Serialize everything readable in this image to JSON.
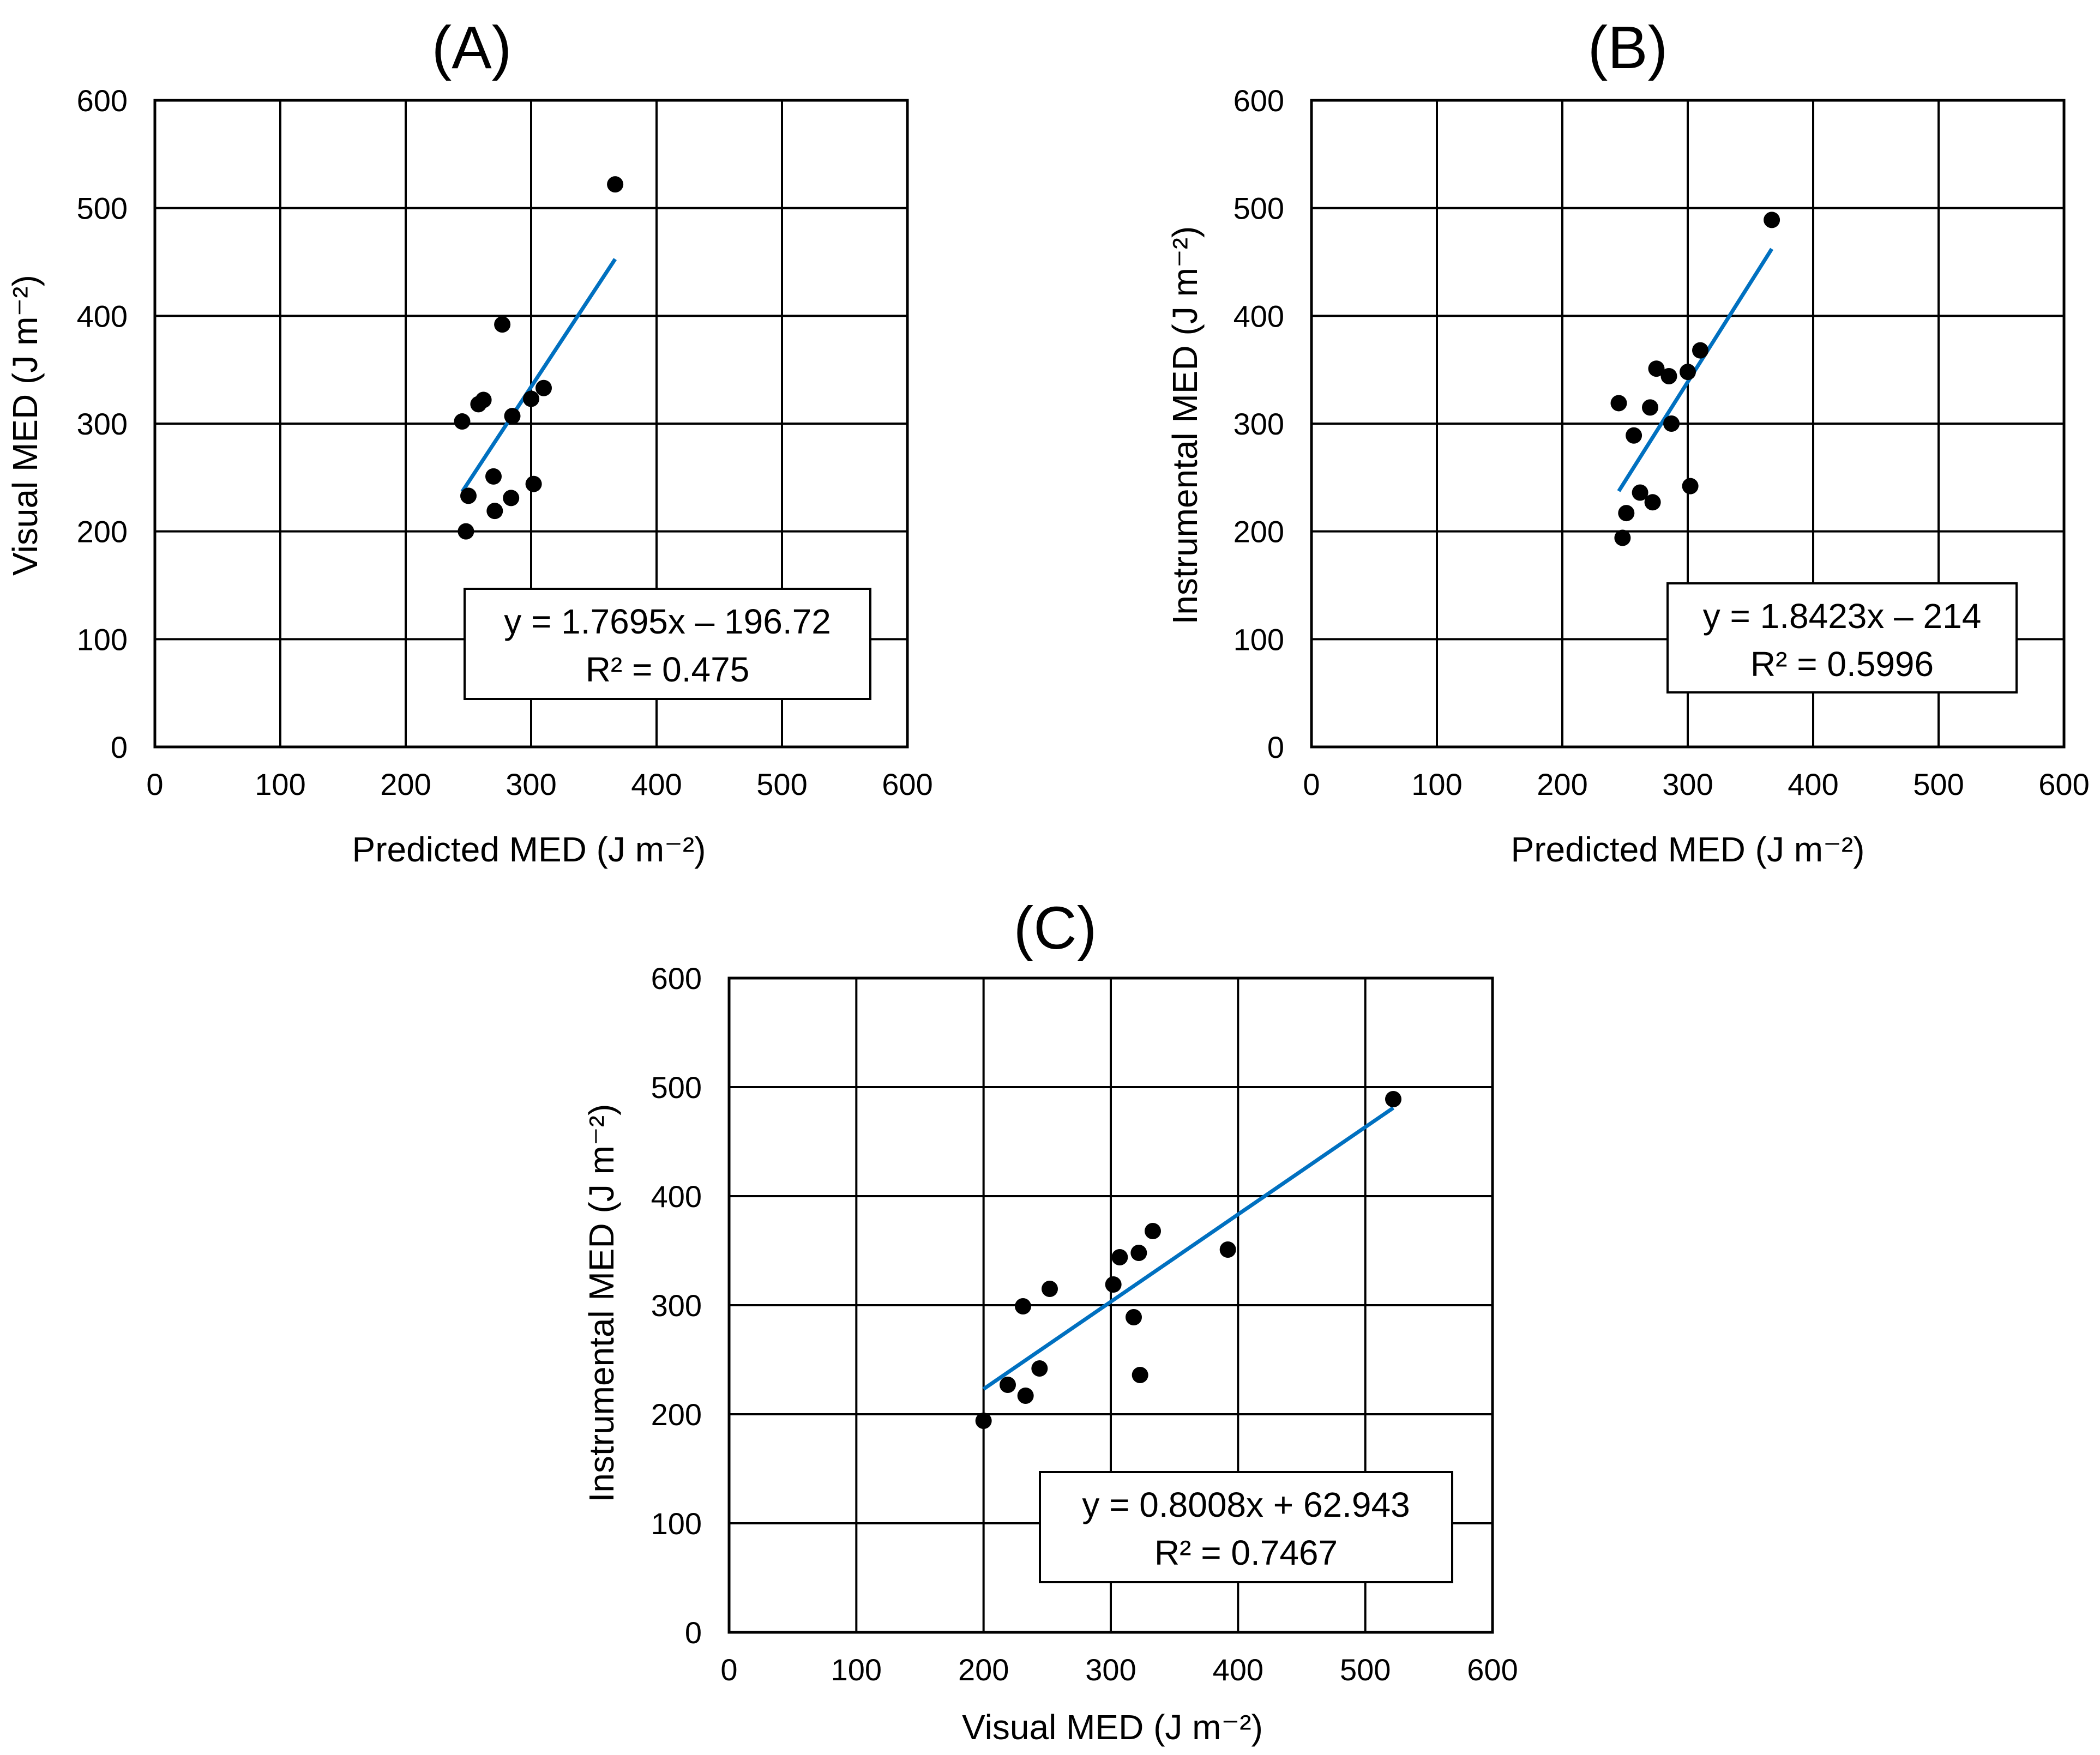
{
  "colors": {
    "trendline": "#0070c0",
    "points": "#000000",
    "grid": "#000000"
  },
  "chart_data": [
    {
      "type": "scatter",
      "panel_label": "(A)",
      "xlabel": "Predicted MED (J m⁻²)",
      "ylabel": "Visual MED (J m⁻²)",
      "xlim": [
        0,
        600
      ],
      "ylim": [
        0,
        600
      ],
      "xticks": [
        "0",
        "100",
        "200",
        "300",
        "400",
        "500",
        "600"
      ],
      "yticks": [
        "0",
        "100",
        "200",
        "300",
        "400",
        "500",
        "600"
      ],
      "grid": true,
      "points": [
        [
          245,
          302
        ],
        [
          248,
          200
        ],
        [
          250,
          233
        ],
        [
          258,
          318
        ],
        [
          262,
          322
        ],
        [
          270,
          251
        ],
        [
          271,
          219
        ],
        [
          277,
          392
        ],
        [
          284,
          231
        ],
        [
          285,
          307
        ],
        [
          300,
          323
        ],
        [
          302,
          244
        ],
        [
          310,
          333
        ],
        [
          367,
          522
        ]
      ],
      "trendline": {
        "slope": 1.7695,
        "intercept": -196.72,
        "x_range": [
          245,
          367
        ]
      },
      "equation": "y = 1.7695x – 196.72",
      "r_squared": "R² = 0.475"
    },
    {
      "type": "scatter",
      "panel_label": "(B)",
      "xlabel": "Predicted MED (J m⁻²)",
      "ylabel": "Instrumental MED (J m⁻²)",
      "xlim": [
        0,
        600
      ],
      "ylim": [
        0,
        600
      ],
      "xticks": [
        "0",
        "100",
        "200",
        "300",
        "400",
        "500",
        "600"
      ],
      "yticks": [
        "0",
        "100",
        "200",
        "300",
        "400",
        "500",
        "600"
      ],
      "grid": true,
      "points": [
        [
          245,
          319
        ],
        [
          248,
          194
        ],
        [
          251,
          217
        ],
        [
          257,
          289
        ],
        [
          262,
          236
        ],
        [
          270,
          315
        ],
        [
          272,
          227
        ],
        [
          275,
          351
        ],
        [
          285,
          344
        ],
        [
          287,
          300
        ],
        [
          300,
          348
        ],
        [
          302,
          242
        ],
        [
          310,
          368
        ],
        [
          367,
          489
        ]
      ],
      "trendline": {
        "slope": 1.8423,
        "intercept": -214,
        "x_range": [
          245,
          367
        ]
      },
      "equation": "y = 1.8423x – 214",
      "r_squared": "R² = 0.5996"
    },
    {
      "type": "scatter",
      "panel_label": "(C)",
      "xlabel": "Visual MED (J m⁻²)",
      "ylabel": "Instrumental MED (J m⁻²)",
      "xlim": [
        0,
        600
      ],
      "ylim": [
        0,
        600
      ],
      "xticks": [
        "0",
        "100",
        "200",
        "300",
        "400",
        "500",
        "600"
      ],
      "yticks": [
        "0",
        "100",
        "200",
        "300",
        "400",
        "500",
        "600"
      ],
      "grid": true,
      "points": [
        [
          200,
          194
        ],
        [
          219,
          227
        ],
        [
          231,
          299
        ],
        [
          233,
          217
        ],
        [
          244,
          242
        ],
        [
          252,
          315
        ],
        [
          302,
          319
        ],
        [
          307,
          344
        ],
        [
          318,
          289
        ],
        [
          322,
          348
        ],
        [
          323,
          236
        ],
        [
          333,
          368
        ],
        [
          392,
          351
        ],
        [
          522,
          489
        ]
      ],
      "trendline": {
        "slope": 0.8008,
        "intercept": 62.943,
        "x_range": [
          200,
          522
        ]
      },
      "equation": "y = 0.8008x + 62.943",
      "r_squared": "R² = 0.7467"
    }
  ]
}
